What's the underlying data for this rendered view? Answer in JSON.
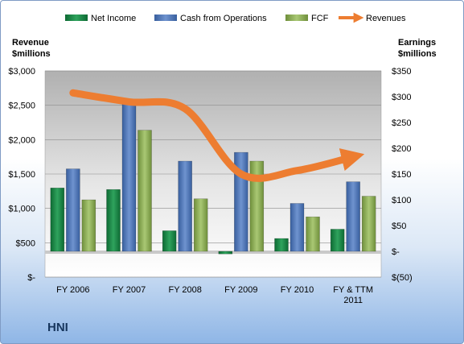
{
  "company": "HNI",
  "chart_data": {
    "type": "bar",
    "categories": [
      [
        "FY 2006"
      ],
      [
        "FY 2007"
      ],
      [
        "FY 2008"
      ],
      [
        "FY 2009"
      ],
      [
        "FY 2010"
      ],
      [
        "FY & TTM",
        "2011"
      ]
    ],
    "y_left": {
      "title": [
        "Revenue",
        "$millions"
      ],
      "ylim": [
        0,
        3000
      ],
      "ticks": [
        0,
        500,
        1000,
        1500,
        2000,
        2500,
        3000
      ],
      "tick_labels": [
        "$-",
        "$500",
        "$1,000",
        "$1,500",
        "$2,000",
        "$2,500",
        "$3,000"
      ]
    },
    "y_right": {
      "title": [
        "Earnings",
        "$millions"
      ],
      "ylim": [
        -50,
        350
      ],
      "ticks": [
        -50,
        0,
        50,
        100,
        150,
        200,
        250,
        300,
        350
      ],
      "tick_labels": [
        "$(50)",
        "$-",
        "$50",
        "$100",
        "$150",
        "$200",
        "$250",
        "$300",
        "$350"
      ]
    },
    "series": [
      {
        "name": "Net Income",
        "axis": "right",
        "type": "bar",
        "color": "#1e8a4a",
        "values": [
          123,
          120,
          40,
          -5,
          25,
          43
        ]
      },
      {
        "name": "Cash from Operations",
        "axis": "right",
        "type": "bar",
        "color": "#4f76b8",
        "values": [
          160,
          290,
          175,
          192,
          93,
          135
        ]
      },
      {
        "name": "FCF",
        "axis": "right",
        "type": "bar",
        "color": "#8fb356",
        "values": [
          100,
          235,
          102,
          175,
          67,
          107
        ]
      },
      {
        "name": "Revenues",
        "axis": "left",
        "type": "line",
        "color": "#ed7d31",
        "values": [
          2680,
          2550,
          2450,
          1500,
          1550,
          1750
        ]
      }
    ],
    "legend": {
      "position": "top"
    },
    "grid": true,
    "plot_background": "gradient-gray"
  }
}
